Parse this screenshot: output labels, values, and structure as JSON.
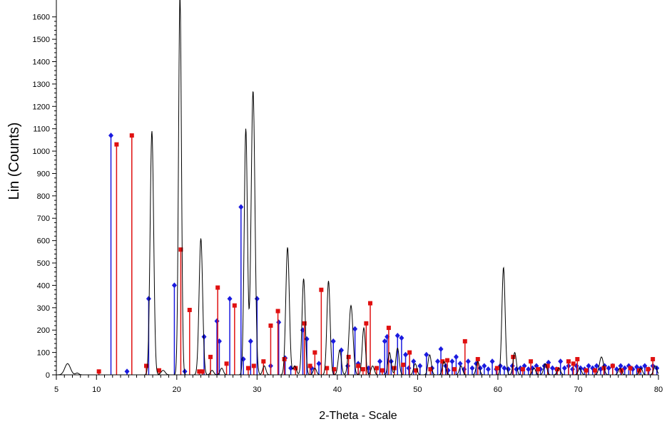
{
  "chart_data": {
    "type": "line",
    "title": "",
    "xlabel": "2-Theta - Scale",
    "ylabel": "Lin (Counts)",
    "xlim": [
      5,
      80
    ],
    "ylim": [
      0,
      1650
    ],
    "grid": false,
    "x_ticks": [
      5,
      10,
      20,
      30,
      40,
      50,
      60,
      70,
      80
    ],
    "y_ticks": [
      0,
      100,
      200,
      300,
      400,
      500,
      600,
      700,
      800,
      900,
      1000,
      1100,
      1200,
      1300,
      1400,
      1500,
      1600
    ],
    "colors": {
      "pattern": "#000000",
      "blue_ref": "#1a1adf",
      "red_ref": "#e01010"
    },
    "series": [
      {
        "style": "line",
        "peaks": [
          {
            "x": 6.4,
            "y": 50,
            "w": 0.35
          },
          {
            "x": 7.6,
            "y": 8,
            "w": 0.2
          },
          {
            "x": 16.9,
            "y": 1090,
            "w": 0.22
          },
          {
            "x": 18.3,
            "y": 20,
            "w": 0.25
          },
          {
            "x": 20.4,
            "y": 1700,
            "w": 0.18
          },
          {
            "x": 23.0,
            "y": 610,
            "w": 0.22
          },
          {
            "x": 24.4,
            "y": 20,
            "w": 0.2
          },
          {
            "x": 25.6,
            "y": 30,
            "w": 0.2
          },
          {
            "x": 28.6,
            "y": 1100,
            "w": 0.2
          },
          {
            "x": 29.5,
            "y": 1270,
            "w": 0.24
          },
          {
            "x": 30.9,
            "y": 40,
            "w": 0.2
          },
          {
            "x": 33.8,
            "y": 570,
            "w": 0.22
          },
          {
            "x": 34.7,
            "y": 40,
            "w": 0.2
          },
          {
            "x": 35.8,
            "y": 430,
            "w": 0.2
          },
          {
            "x": 37.2,
            "y": 30,
            "w": 0.2
          },
          {
            "x": 38.9,
            "y": 420,
            "w": 0.2
          },
          {
            "x": 40.3,
            "y": 110,
            "w": 0.2
          },
          {
            "x": 41.7,
            "y": 310,
            "w": 0.25
          },
          {
            "x": 43.3,
            "y": 210,
            "w": 0.2
          },
          {
            "x": 44.4,
            "y": 40,
            "w": 0.2
          },
          {
            "x": 46.5,
            "y": 100,
            "w": 0.2
          },
          {
            "x": 47.5,
            "y": 120,
            "w": 0.2
          },
          {
            "x": 49.7,
            "y": 50,
            "w": 0.2
          },
          {
            "x": 51.5,
            "y": 90,
            "w": 0.2
          },
          {
            "x": 53.3,
            "y": 60,
            "w": 0.2
          },
          {
            "x": 55.4,
            "y": 40,
            "w": 0.2
          },
          {
            "x": 57.5,
            "y": 60,
            "w": 0.2
          },
          {
            "x": 60.7,
            "y": 480,
            "w": 0.2
          },
          {
            "x": 62.1,
            "y": 100,
            "w": 0.2
          },
          {
            "x": 64.5,
            "y": 30,
            "w": 0.2
          },
          {
            "x": 65.9,
            "y": 50,
            "w": 0.2
          },
          {
            "x": 67.6,
            "y": 30,
            "w": 0.2
          },
          {
            "x": 70.2,
            "y": 30,
            "w": 0.2
          },
          {
            "x": 72.9,
            "y": 80,
            "w": 0.25
          },
          {
            "x": 75.2,
            "y": 30,
            "w": 0.2
          },
          {
            "x": 77.8,
            "y": 30,
            "w": 0.2
          },
          {
            "x": 79.6,
            "y": 40,
            "w": 0.2
          }
        ]
      },
      {
        "style": "sticks",
        "color": "#1a1adf",
        "marker": "diamond",
        "points": [
          [
            11.8,
            1070
          ],
          [
            13.8,
            15
          ],
          [
            16.5,
            340
          ],
          [
            19.7,
            400
          ],
          [
            21.0,
            15
          ],
          [
            23.4,
            170
          ],
          [
            25.0,
            240
          ],
          [
            25.3,
            150
          ],
          [
            26.6,
            340
          ],
          [
            28.0,
            750
          ],
          [
            28.3,
            70
          ],
          [
            29.2,
            150
          ],
          [
            30.0,
            340
          ],
          [
            31.7,
            40
          ],
          [
            32.7,
            235
          ],
          [
            33.5,
            75
          ],
          [
            34.2,
            30
          ],
          [
            35.7,
            200
          ],
          [
            36.2,
            160
          ],
          [
            36.8,
            30
          ],
          [
            37.7,
            50
          ],
          [
            39.5,
            150
          ],
          [
            40.5,
            110
          ],
          [
            41.3,
            40
          ],
          [
            42.2,
            205
          ],
          [
            42.6,
            50
          ],
          [
            43.9,
            30
          ],
          [
            45.3,
            60
          ],
          [
            45.9,
            150
          ],
          [
            46.2,
            170
          ],
          [
            46.7,
            60
          ],
          [
            47.5,
            175
          ],
          [
            48.0,
            165
          ],
          [
            48.5,
            90
          ],
          [
            48.9,
            30
          ],
          [
            49.5,
            60
          ],
          [
            50.3,
            40
          ],
          [
            51.1,
            90
          ],
          [
            51.8,
            30
          ],
          [
            52.5,
            60
          ],
          [
            52.9,
            115
          ],
          [
            53.5,
            40
          ],
          [
            53.8,
            20
          ],
          [
            54.3,
            60
          ],
          [
            54.8,
            80
          ],
          [
            55.3,
            50
          ],
          [
            55.8,
            25
          ],
          [
            56.3,
            60
          ],
          [
            56.8,
            30
          ],
          [
            57.3,
            50
          ],
          [
            57.8,
            30
          ],
          [
            58.3,
            40
          ],
          [
            58.8,
            25
          ],
          [
            59.3,
            60
          ],
          [
            59.8,
            25
          ],
          [
            60.3,
            40
          ],
          [
            60.8,
            30
          ],
          [
            61.3,
            25
          ],
          [
            61.8,
            40
          ],
          [
            62.3,
            25
          ],
          [
            62.8,
            30
          ],
          [
            63.3,
            40
          ],
          [
            63.8,
            25
          ],
          [
            64.3,
            30
          ],
          [
            64.8,
            40
          ],
          [
            65.3,
            25
          ],
          [
            65.8,
            40
          ],
          [
            66.3,
            55
          ],
          [
            66.8,
            30
          ],
          [
            67.3,
            25
          ],
          [
            67.8,
            60
          ],
          [
            68.3,
            30
          ],
          [
            68.8,
            40
          ],
          [
            69.3,
            25
          ],
          [
            69.8,
            40
          ],
          [
            70.3,
            30
          ],
          [
            70.8,
            25
          ],
          [
            71.3,
            40
          ],
          [
            71.8,
            30
          ],
          [
            72.3,
            40
          ],
          [
            72.8,
            25
          ],
          [
            73.3,
            40
          ],
          [
            73.8,
            30
          ],
          [
            74.3,
            40
          ],
          [
            74.8,
            25
          ],
          [
            75.3,
            40
          ],
          [
            75.8,
            30
          ],
          [
            76.3,
            40
          ],
          [
            76.8,
            25
          ],
          [
            77.3,
            35
          ],
          [
            77.8,
            30
          ],
          [
            78.3,
            40
          ],
          [
            78.8,
            25
          ],
          [
            79.3,
            40
          ],
          [
            79.8,
            30
          ]
        ]
      },
      {
        "style": "sticks",
        "color": "#e01010",
        "marker": "square",
        "points": [
          [
            10.3,
            15
          ],
          [
            12.5,
            1030
          ],
          [
            14.4,
            1070
          ],
          [
            16.2,
            40
          ],
          [
            17.8,
            20
          ],
          [
            20.5,
            560
          ],
          [
            21.6,
            290
          ],
          [
            22.8,
            15
          ],
          [
            23.2,
            15
          ],
          [
            24.2,
            80
          ],
          [
            25.1,
            390
          ],
          [
            26.2,
            50
          ],
          [
            27.2,
            310
          ],
          [
            28.9,
            30
          ],
          [
            29.6,
            40
          ],
          [
            30.8,
            60
          ],
          [
            31.7,
            220
          ],
          [
            32.6,
            285
          ],
          [
            33.4,
            70
          ],
          [
            34.8,
            30
          ],
          [
            35.9,
            230
          ],
          [
            36.6,
            40
          ],
          [
            37.2,
            100
          ],
          [
            38.0,
            380
          ],
          [
            38.7,
            30
          ],
          [
            39.6,
            25
          ],
          [
            41.4,
            80
          ],
          [
            42.6,
            40
          ],
          [
            43.2,
            25
          ],
          [
            43.6,
            230
          ],
          [
            44.1,
            320
          ],
          [
            44.9,
            30
          ],
          [
            45.6,
            20
          ],
          [
            46.4,
            210
          ],
          [
            47.1,
            30
          ],
          [
            48.2,
            45
          ],
          [
            49.0,
            100
          ],
          [
            49.8,
            20
          ],
          [
            51.6,
            25
          ],
          [
            53.1,
            60
          ],
          [
            53.7,
            65
          ],
          [
            54.6,
            25
          ],
          [
            55.9,
            150
          ],
          [
            57.5,
            70
          ],
          [
            59.9,
            30
          ],
          [
            61.9,
            80
          ],
          [
            63.1,
            25
          ],
          [
            64.1,
            60
          ],
          [
            65.0,
            25
          ],
          [
            66.2,
            40
          ],
          [
            67.4,
            25
          ],
          [
            68.8,
            60
          ],
          [
            69.4,
            50
          ],
          [
            69.9,
            70
          ],
          [
            71.0,
            20
          ],
          [
            72.1,
            20
          ],
          [
            73.2,
            30
          ],
          [
            74.3,
            40
          ],
          [
            75.4,
            20
          ],
          [
            76.5,
            30
          ],
          [
            77.6,
            20
          ],
          [
            78.7,
            25
          ],
          [
            79.3,
            70
          ]
        ]
      }
    ]
  }
}
